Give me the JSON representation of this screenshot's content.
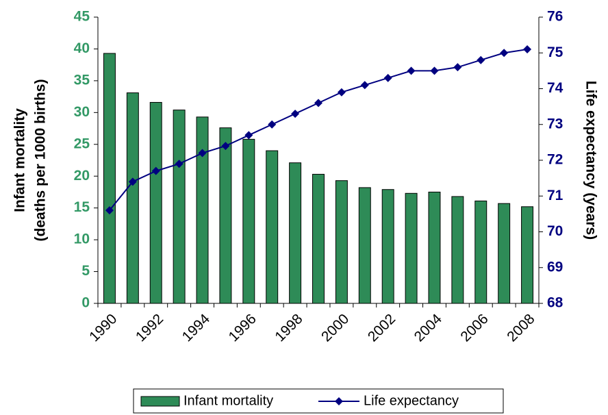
{
  "chart_data": {
    "type": "bar-line",
    "categories": [
      "1990",
      null,
      "1992",
      null,
      "1994",
      null,
      "1996",
      null,
      "1998",
      null,
      "2000",
      null,
      "2002",
      null,
      "2004",
      null,
      "2006",
      null,
      "2008"
    ],
    "series": [
      {
        "name": "Infant mortality",
        "type": "bar",
        "color": "#2e8b57",
        "values": [
          39.3,
          33.1,
          31.6,
          30.4,
          29.3,
          27.6,
          25.8,
          24.0,
          22.1,
          20.3,
          19.3,
          18.2,
          17.9,
          17.3,
          17.5,
          16.8,
          16.1,
          15.7,
          15.2
        ]
      },
      {
        "name": "Life expectancy",
        "type": "line",
        "axis": "y2",
        "color": "#000080",
        "values": [
          70.6,
          71.4,
          71.7,
          71.9,
          72.2,
          72.4,
          72.7,
          73.0,
          73.3,
          73.6,
          73.9,
          74.1,
          74.3,
          74.5,
          74.5,
          74.6,
          74.8,
          75.0,
          75.1
        ]
      }
    ],
    "ylabel": [
      "Infant mortality",
      "(deaths per 1000 births)"
    ],
    "y2label": "Life expectancy (years)",
    "ylim": [
      0,
      45
    ],
    "yticks": [
      0,
      5,
      10,
      15,
      20,
      25,
      30,
      35,
      40,
      45
    ],
    "y2lim": [
      68,
      76
    ],
    "y2ticks": [
      68,
      69,
      70,
      71,
      72,
      73,
      74,
      75,
      76
    ],
    "ytick_color": "#339966",
    "y2tick_color": "#000080",
    "legend": "bottom"
  }
}
